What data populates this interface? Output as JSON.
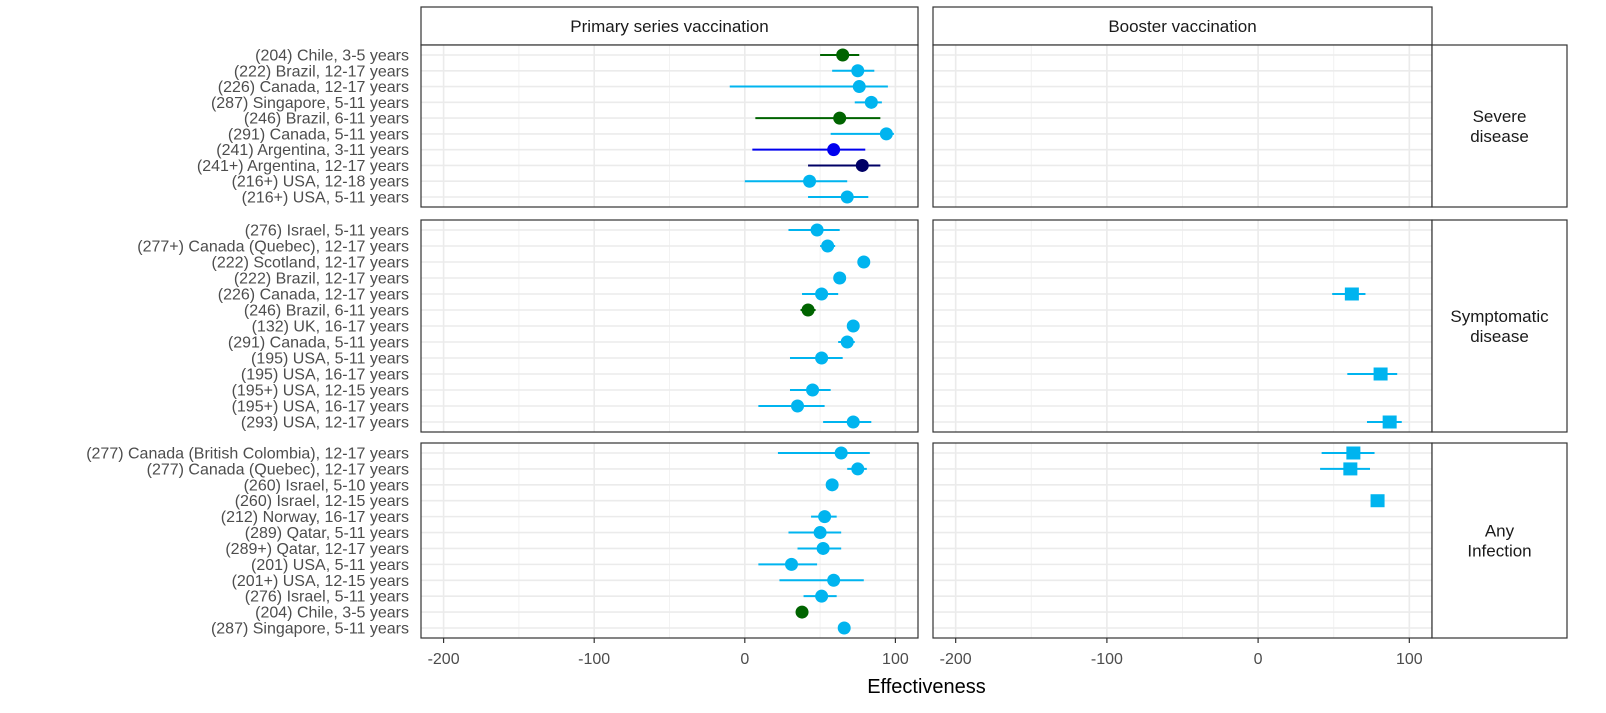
{
  "chart_data": {
    "type": "scatter",
    "subtype": "forest-plot-faceted",
    "xlabel": "Effectiveness",
    "xlim": [
      -215,
      115
    ],
    "x_ticks": [
      -200,
      -100,
      0,
      100
    ],
    "grid": true,
    "columns": [
      "Primary series vaccination",
      "Booster vaccination"
    ],
    "rows": [
      {
        "label": "Severe disease",
        "label_lines": [
          "Severe",
          "disease"
        ],
        "studies": [
          {
            "label": "(204) Chile, 3-5 years",
            "primary": {
              "est": 65,
              "lo": 50,
              "hi": 76,
              "color": "#006400"
            }
          },
          {
            "label": "(222) Brazil, 12-17 years",
            "primary": {
              "est": 75,
              "lo": 58,
              "hi": 86,
              "color": "#00b4ef"
            }
          },
          {
            "label": "(226) Canada, 12-17 years",
            "primary": {
              "est": 76,
              "lo": -10,
              "hi": 95,
              "color": "#00b4ef"
            }
          },
          {
            "label": "(287) Singapore, 5-11 years",
            "primary": {
              "est": 84,
              "lo": 73,
              "hi": 91,
              "color": "#00b4ef"
            }
          },
          {
            "label": "(246) Brazil, 6-11 years",
            "primary": {
              "est": 63,
              "lo": 7,
              "hi": 90,
              "color": "#006400"
            }
          },
          {
            "label": "(291) Canada, 5-11 years",
            "primary": {
              "est": 94,
              "lo": 57,
              "hi": 99,
              "color": "#00b4ef"
            }
          },
          {
            "label": "(241) Argentina, 3-11 years",
            "primary": {
              "est": 59,
              "lo": 5,
              "hi": 80,
              "color": "#0000ee"
            }
          },
          {
            "label": "(241+) Argentina, 12-17 years",
            "primary": {
              "est": 78,
              "lo": 42,
              "hi": 90,
              "color": "#000066"
            }
          },
          {
            "label": "(216+) USA, 12-18 years",
            "primary": {
              "est": 43,
              "lo": 0,
              "hi": 68,
              "color": "#00b4ef"
            }
          },
          {
            "label": "(216+) USA, 5-11 years",
            "primary": {
              "est": 68,
              "lo": 42,
              "hi": 82,
              "color": "#00b4ef"
            }
          }
        ]
      },
      {
        "label": "Symptomatic disease",
        "label_lines": [
          "Symptomatic",
          "disease"
        ],
        "studies": [
          {
            "label": "(276) Israel, 5-11 years",
            "primary": {
              "est": 48,
              "lo": 29,
              "hi": 63,
              "color": "#00b4ef"
            }
          },
          {
            "label": "(277+) Canada (Quebec), 12-17 years",
            "primary": {
              "est": 55,
              "lo": 50,
              "hi": 60,
              "color": "#00b4ef"
            }
          },
          {
            "label": "(222) Scotland, 12-17 years",
            "primary": {
              "est": 79,
              "lo": 77,
              "hi": 81,
              "color": "#00b4ef"
            }
          },
          {
            "label": "(222) Brazil, 12-17 years",
            "primary": {
              "est": 63,
              "lo": 61,
              "hi": 65,
              "color": "#00b4ef"
            }
          },
          {
            "label": "(226) Canada, 12-17 years",
            "primary": {
              "est": 51,
              "lo": 38,
              "hi": 62,
              "color": "#00b4ef"
            },
            "booster": {
              "est": 62,
              "lo": 49,
              "hi": 71,
              "color": "#00b4ef"
            }
          },
          {
            "label": "(246) Brazil, 6-11 years",
            "primary": {
              "est": 42,
              "lo": 37,
              "hi": 47,
              "color": "#006400"
            }
          },
          {
            "label": "(132) UK, 16-17  years",
            "primary": {
              "est": 72,
              "lo": 70,
              "hi": 74,
              "color": "#00b4ef"
            }
          },
          {
            "label": "(291) Canada, 5-11 years",
            "primary": {
              "est": 68,
              "lo": 62,
              "hi": 73,
              "color": "#00b4ef"
            }
          },
          {
            "label": "(195) USA, 5-11 years",
            "primary": {
              "est": 51,
              "lo": 30,
              "hi": 65,
              "color": "#00b4ef"
            }
          },
          {
            "label": "(195) USA, 16-17 years",
            "booster": {
              "est": 81,
              "lo": 59,
              "hi": 92,
              "color": "#00b4ef"
            }
          },
          {
            "label": "(195+) USA, 12-15 years",
            "primary": {
              "est": 45,
              "lo": 30,
              "hi": 57,
              "color": "#00b4ef"
            }
          },
          {
            "label": "(195+) USA, 16-17 years",
            "primary": {
              "est": 35,
              "lo": 9,
              "hi": 53,
              "color": "#00b4ef"
            }
          },
          {
            "label": "(293) USA, 12-17 years",
            "primary": {
              "est": 72,
              "lo": 52,
              "hi": 84,
              "color": "#00b4ef"
            },
            "booster": {
              "est": 87,
              "lo": 72,
              "hi": 95,
              "color": "#00b4ef"
            }
          }
        ]
      },
      {
        "label": "Any Infection",
        "label_lines": [
          "Any",
          "Infection"
        ],
        "studies": [
          {
            "label": "(277) Canada (British Colombia), 12-17 years",
            "primary": {
              "est": 64,
              "lo": 22,
              "hi": 83,
              "color": "#00b4ef"
            },
            "booster": {
              "est": 63,
              "lo": 42,
              "hi": 77,
              "color": "#00b4ef"
            }
          },
          {
            "label": "(277) Canada (Quebec), 12-17 years",
            "primary": {
              "est": 75,
              "lo": 68,
              "hi": 81,
              "color": "#00b4ef"
            },
            "booster": {
              "est": 61,
              "lo": 41,
              "hi": 74,
              "color": "#00b4ef"
            }
          },
          {
            "label": "(260) Israel, 5-10 years",
            "primary": {
              "est": 58,
              "lo": 55,
              "hi": 61,
              "color": "#00b4ef"
            }
          },
          {
            "label": "(260) Israel, 12-15 years",
            "booster": {
              "est": 79,
              "lo": 75,
              "hi": 82,
              "color": "#00b4ef"
            }
          },
          {
            "label": "(212) Norway, 16-17 years",
            "primary": {
              "est": 53,
              "lo": 44,
              "hi": 61,
              "color": "#00b4ef"
            }
          },
          {
            "label": "(289) Qatar, 5-11 years",
            "primary": {
              "est": 50,
              "lo": 29,
              "hi": 64,
              "color": "#00b4ef"
            }
          },
          {
            "label": "(289+) Qatar, 12-17 years",
            "primary": {
              "est": 52,
              "lo": 35,
              "hi": 64,
              "color": "#00b4ef"
            }
          },
          {
            "label": "(201) USA, 5-11 years",
            "primary": {
              "est": 31,
              "lo": 9,
              "hi": 48,
              "color": "#00b4ef"
            }
          },
          {
            "label": "(201+) USA, 12-15 years",
            "primary": {
              "est": 59,
              "lo": 23,
              "hi": 79,
              "color": "#00b4ef"
            }
          },
          {
            "label": "(276) Israel, 5-11 years",
            "primary": {
              "est": 51,
              "lo": 39,
              "hi": 61,
              "color": "#00b4ef"
            }
          },
          {
            "label": "(204) Chile, 3-5 years",
            "primary": {
              "est": 38,
              "lo": 36,
              "hi": 40,
              "color": "#006400"
            }
          },
          {
            "label": "(287) Singapore, 5-11 years",
            "primary": {
              "est": 66,
              "lo": 64,
              "hi": 68,
              "color": "#00b4ef"
            }
          }
        ]
      }
    ]
  }
}
